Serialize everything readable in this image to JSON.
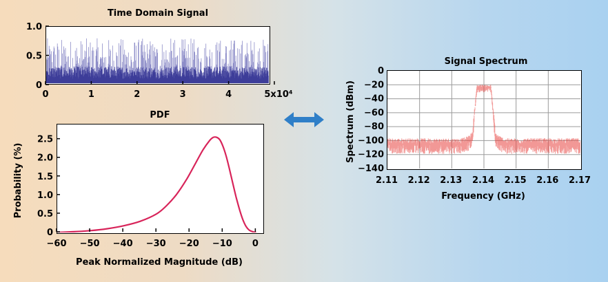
{
  "chart_data": [
    {
      "type": "line",
      "title": "Time Domain Signal",
      "xlabel": "",
      "ylabel": "",
      "xlim": [
        0,
        50000
      ],
      "ylim": [
        0,
        1.0
      ],
      "x_ticks": [
        "0",
        "1",
        "2",
        "3",
        "4",
        "5x10⁴"
      ],
      "y_ticks": [
        "0",
        "0.5",
        "1.0"
      ],
      "description_values": {
        "typical_envelope_mean": 0.25,
        "typical_peak": 0.8
      },
      "series_color": "#2f2f9a",
      "grid": false
    },
    {
      "type": "line",
      "title": "PDF",
      "xlabel": "Peak Normalized Magnitude (dB)",
      "ylabel": "Probability (%)",
      "xlim": [
        -60,
        2
      ],
      "ylim": [
        0,
        2.9
      ],
      "x_ticks": [
        "−60",
        "−50",
        "−40",
        "−30",
        "−20",
        "−10",
        "0"
      ],
      "y_ticks": [
        "0",
        "0.5",
        "1.0",
        "1.5",
        "2.0",
        "2.5"
      ],
      "series": [
        {
          "color": "#d8245a",
          "x": [
            -60,
            -55,
            -50,
            -45,
            -40,
            -35,
            -30,
            -27,
            -24,
            -21,
            -18,
            -16,
            -14,
            -13,
            -12,
            -11,
            -10,
            -9,
            -8,
            -7,
            -6,
            -5,
            -4,
            -3,
            -2,
            -1,
            0
          ],
          "y": [
            0.0,
            0.02,
            0.05,
            0.1,
            0.18,
            0.3,
            0.5,
            0.72,
            1.02,
            1.42,
            1.9,
            2.22,
            2.47,
            2.55,
            2.56,
            2.5,
            2.32,
            2.05,
            1.7,
            1.32,
            0.95,
            0.62,
            0.35,
            0.16,
            0.06,
            0.02,
            0.0
          ]
        }
      ],
      "grid": false
    },
    {
      "type": "line",
      "title": "Signal Spectrum",
      "xlabel": "Frequency (GHz)",
      "ylabel": "Spectrum (dBm)",
      "xlim": [
        2.11,
        2.17
      ],
      "ylim": [
        -140,
        0
      ],
      "x_ticks": [
        "2.11",
        "2.12",
        "2.13",
        "2.14",
        "2.15",
        "2.16",
        "2.17"
      ],
      "y_ticks": [
        "0",
        "−20",
        "−40",
        "−60",
        "−80",
        "−100",
        "−120",
        "−140"
      ],
      "noise_floor_dBm": -105,
      "peak_dBm": -20,
      "center_GHz": 2.14,
      "series_color": "#e8433f",
      "grid": true
    }
  ],
  "arrow": {
    "icon": "double-arrow-icon",
    "color": "#2f7fc8"
  }
}
